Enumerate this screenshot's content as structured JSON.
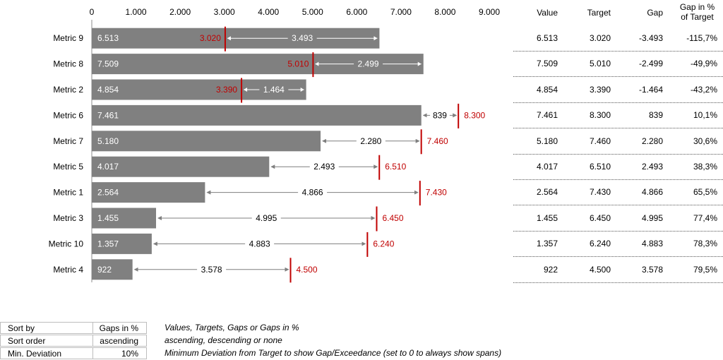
{
  "chart_data": {
    "type": "bar",
    "orientation": "horizontal",
    "categories": [
      "Metric 9",
      "Metric 8",
      "Metric 2",
      "Metric 6",
      "Metric 7",
      "Metric 5",
      "Metric 1",
      "Metric 3",
      "Metric 10",
      "Metric 4"
    ],
    "series": [
      {
        "name": "Value",
        "values": [
          6513,
          7509,
          4854,
          7461,
          5180,
          4017,
          2564,
          1455,
          1357,
          922
        ]
      },
      {
        "name": "Target",
        "values": [
          3020,
          5010,
          3390,
          8300,
          7460,
          6510,
          7430,
          6450,
          6240,
          4500
        ]
      }
    ],
    "value_labels": [
      "6.513",
      "7.509",
      "4.854",
      "7.461",
      "5.180",
      "4.017",
      "2.564",
      "1.455",
      "1.357",
      "922"
    ],
    "target_labels": [
      "3.020",
      "5.010",
      "3.390",
      "8.300",
      "7.460",
      "6.510",
      "7.430",
      "6.450",
      "6.240",
      "4.500"
    ],
    "gap_labels": [
      "3.493",
      "2.499",
      "1.464",
      "839",
      "2.280",
      "2.493",
      "4.866",
      "4.995",
      "4.883",
      "3.578"
    ],
    "xlim": [
      0,
      9000
    ],
    "xticks": [
      0,
      1000,
      2000,
      3000,
      4000,
      5000,
      6000,
      7000,
      8000,
      9000
    ],
    "xtick_labels": [
      "0",
      "1.000",
      "2.000",
      "3.000",
      "4.000",
      "5.000",
      "6.000",
      "7.000",
      "8.000",
      "9.000"
    ],
    "xaxis_position": "top",
    "grid": false,
    "colors": {
      "bar": "#808080",
      "target": "#c00000",
      "arrow": "#7f7f7f",
      "value_text": "#ffffff"
    }
  },
  "table": {
    "headers": {
      "value": "Value",
      "target": "Target",
      "gap": "Gap",
      "gap_pct_line1": "Gap in %",
      "gap_pct_line2": "of Target"
    },
    "rows": [
      {
        "value": "6.513",
        "target": "3.020",
        "gap": "-3.493",
        "pct": "-115,7%"
      },
      {
        "value": "7.509",
        "target": "5.010",
        "gap": "-2.499",
        "pct": "-49,9%"
      },
      {
        "value": "4.854",
        "target": "3.390",
        "gap": "-1.464",
        "pct": "-43,2%"
      },
      {
        "value": "7.461",
        "target": "8.300",
        "gap": "839",
        "pct": "10,1%"
      },
      {
        "value": "5.180",
        "target": "7.460",
        "gap": "2.280",
        "pct": "30,6%"
      },
      {
        "value": "4.017",
        "target": "6.510",
        "gap": "2.493",
        "pct": "38,3%"
      },
      {
        "value": "2.564",
        "target": "7.430",
        "gap": "4.866",
        "pct": "65,5%"
      },
      {
        "value": "1.455",
        "target": "6.450",
        "gap": "4.995",
        "pct": "77,4%"
      },
      {
        "value": "1.357",
        "target": "6.240",
        "gap": "4.883",
        "pct": "78,3%"
      },
      {
        "value": "922",
        "target": "4.500",
        "gap": "3.578",
        "pct": "79,5%"
      }
    ]
  },
  "settings": {
    "sort_by": {
      "label": "Sort by",
      "value": "Gaps in %",
      "desc": "Values, Targets, Gaps or Gaps in %"
    },
    "sort_order": {
      "label": "Sort order",
      "value": "ascending",
      "desc": "ascending, descending or none"
    },
    "min_deviation": {
      "label": "Min. Deviation",
      "value": "10%",
      "desc": "Minimum Deviation from Target to show Gap/Exceedance (set to 0 to always show spans)"
    }
  }
}
